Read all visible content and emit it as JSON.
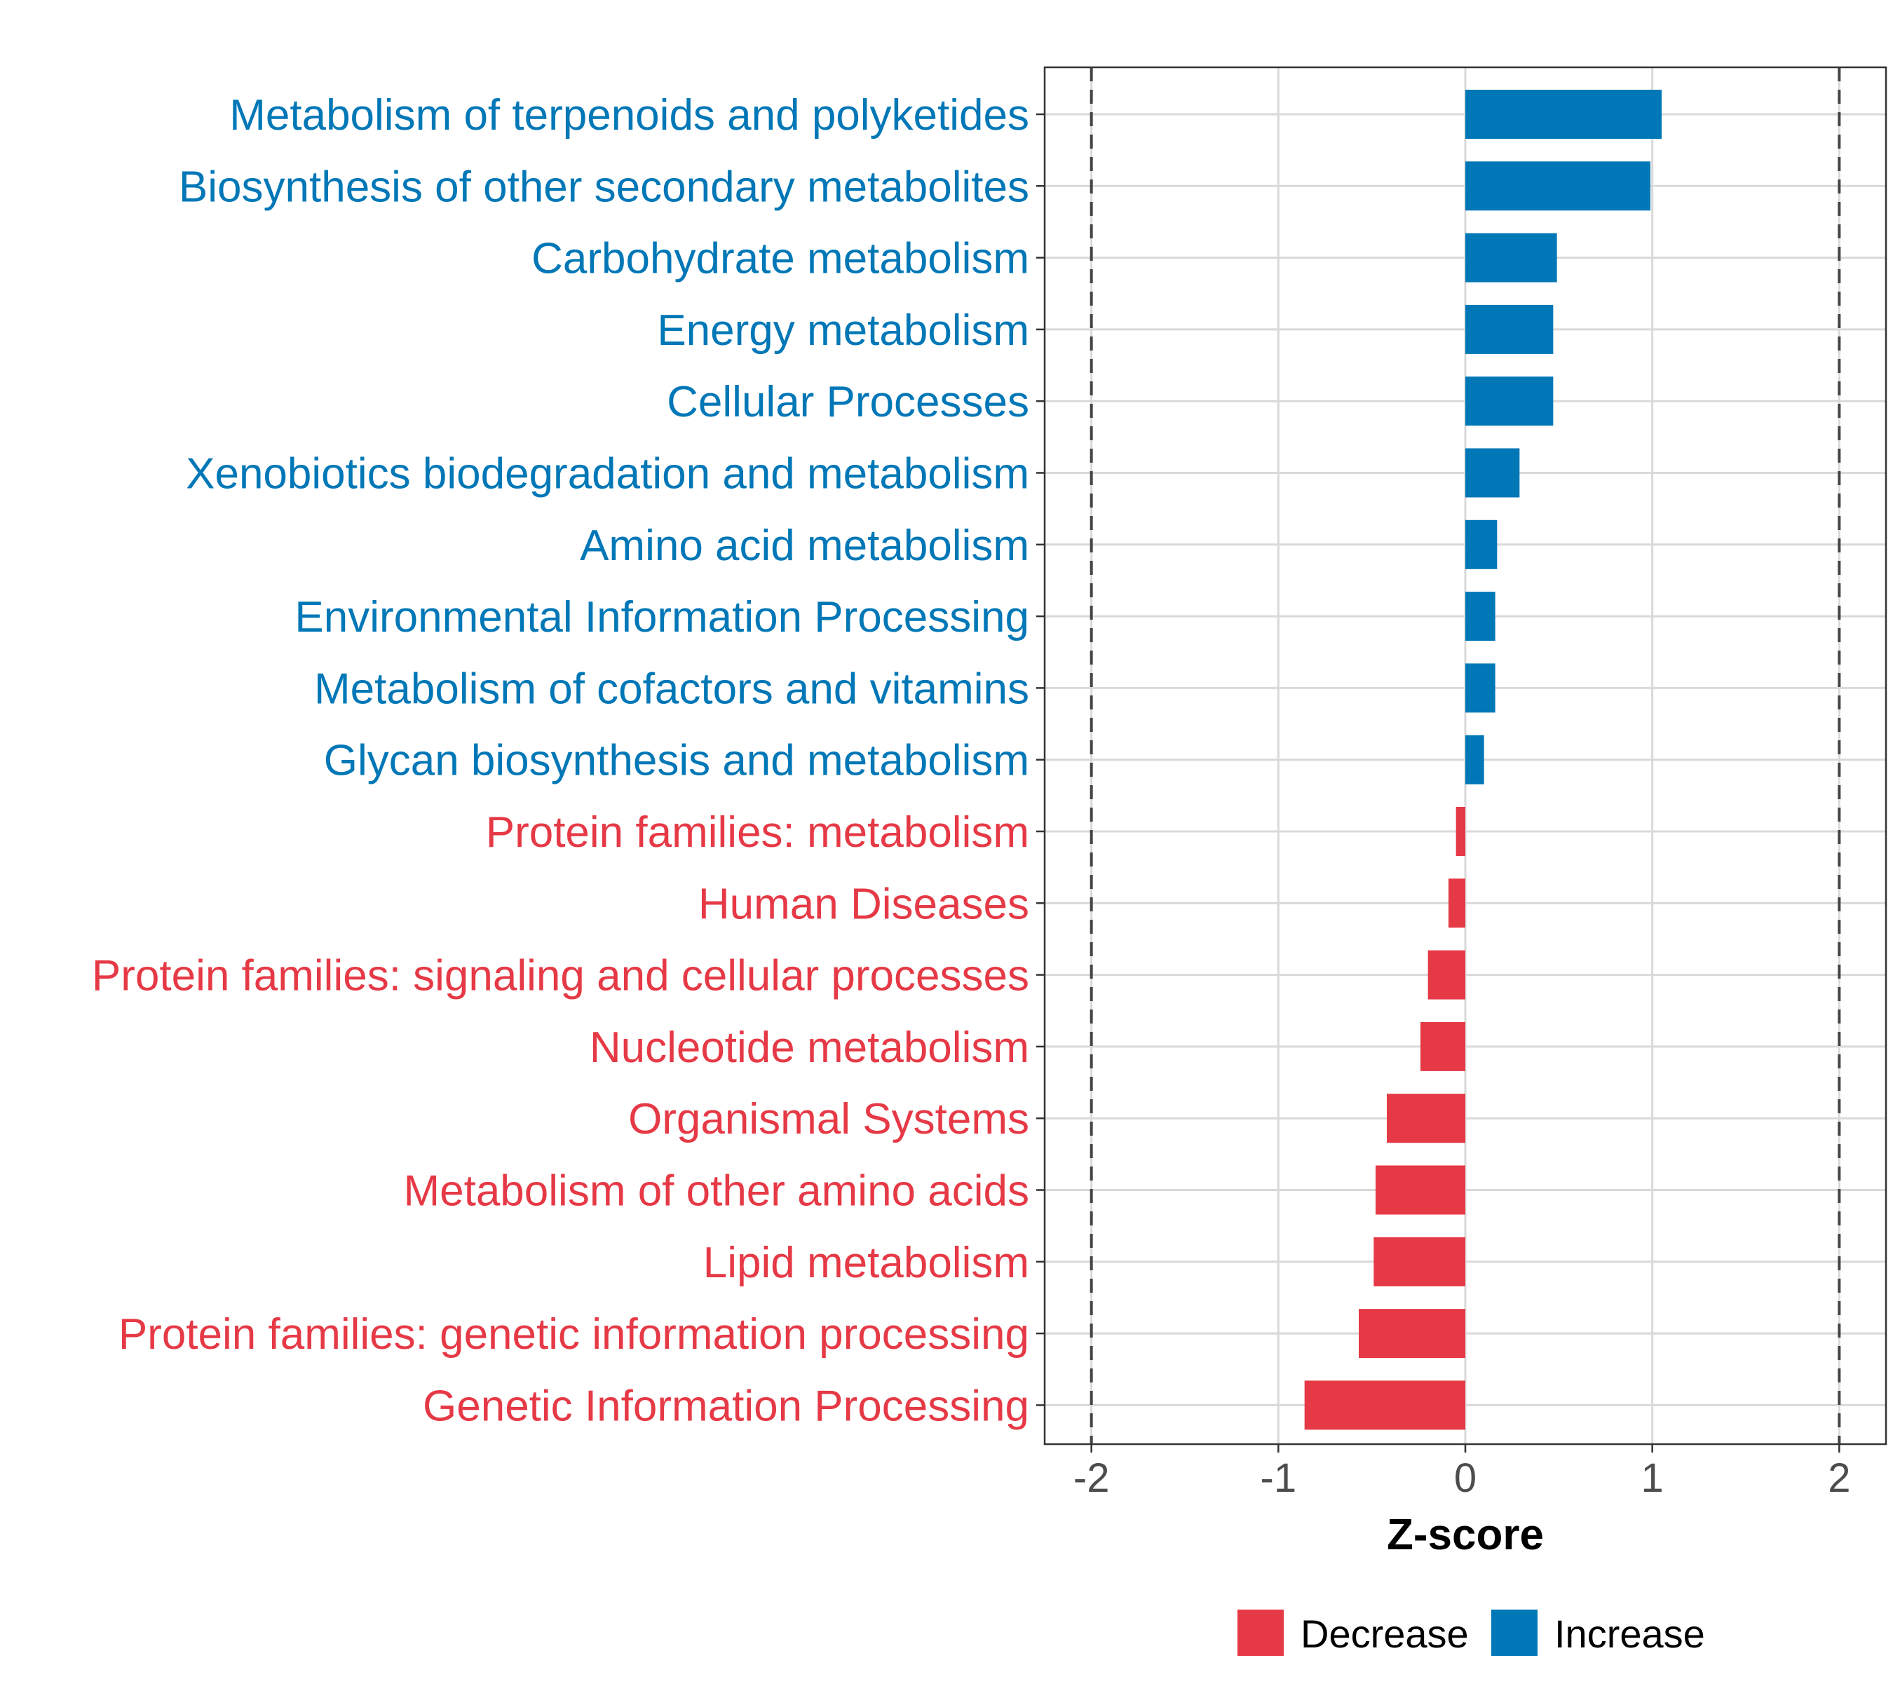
{
  "chart_data": {
    "type": "bar",
    "orientation": "horizontal",
    "title": "",
    "xlabel": "Z-score",
    "ylabel": "",
    "xlim": [
      -2.25,
      2.25
    ],
    "xticks": [
      "-2",
      "-1",
      "0",
      "1",
      "2"
    ],
    "tick_values": [
      -2,
      -1,
      0,
      1,
      2
    ],
    "reference_lines": [
      -2,
      2
    ],
    "grid": true,
    "legend_position": "bottom",
    "legend": [
      {
        "label": "Decrease",
        "color": "#E63946"
      },
      {
        "label": "Increase",
        "color": "#0077B6"
      }
    ],
    "categories": [
      "Metabolism of terpenoids and polyketides",
      "Biosynthesis of other secondary metabolites",
      "Carbohydrate metabolism",
      "Energy metabolism",
      "Cellular Processes",
      "Xenobiotics biodegradation and metabolism",
      "Amino acid metabolism",
      "Environmental Information Processing",
      "Metabolism of cofactors and vitamins",
      "Glycan biosynthesis and metabolism",
      "Protein families: metabolism",
      "Human Diseases",
      "Protein families: signaling and cellular processes",
      "Nucleotide metabolism",
      "Organismal Systems",
      "Metabolism of other amino acids",
      "Lipid metabolism",
      "Protein families: genetic information processing",
      "Genetic Information Processing"
    ],
    "values": [
      1.05,
      0.99,
      0.49,
      0.47,
      0.47,
      0.29,
      0.17,
      0.16,
      0.16,
      0.1,
      -0.05,
      -0.09,
      -0.2,
      -0.24,
      -0.42,
      -0.48,
      -0.49,
      -0.57,
      -0.86
    ],
    "groups": [
      "Increase",
      "Increase",
      "Increase",
      "Increase",
      "Increase",
      "Increase",
      "Increase",
      "Increase",
      "Increase",
      "Increase",
      "Decrease",
      "Decrease",
      "Decrease",
      "Decrease",
      "Decrease",
      "Decrease",
      "Decrease",
      "Decrease",
      "Decrease"
    ]
  }
}
